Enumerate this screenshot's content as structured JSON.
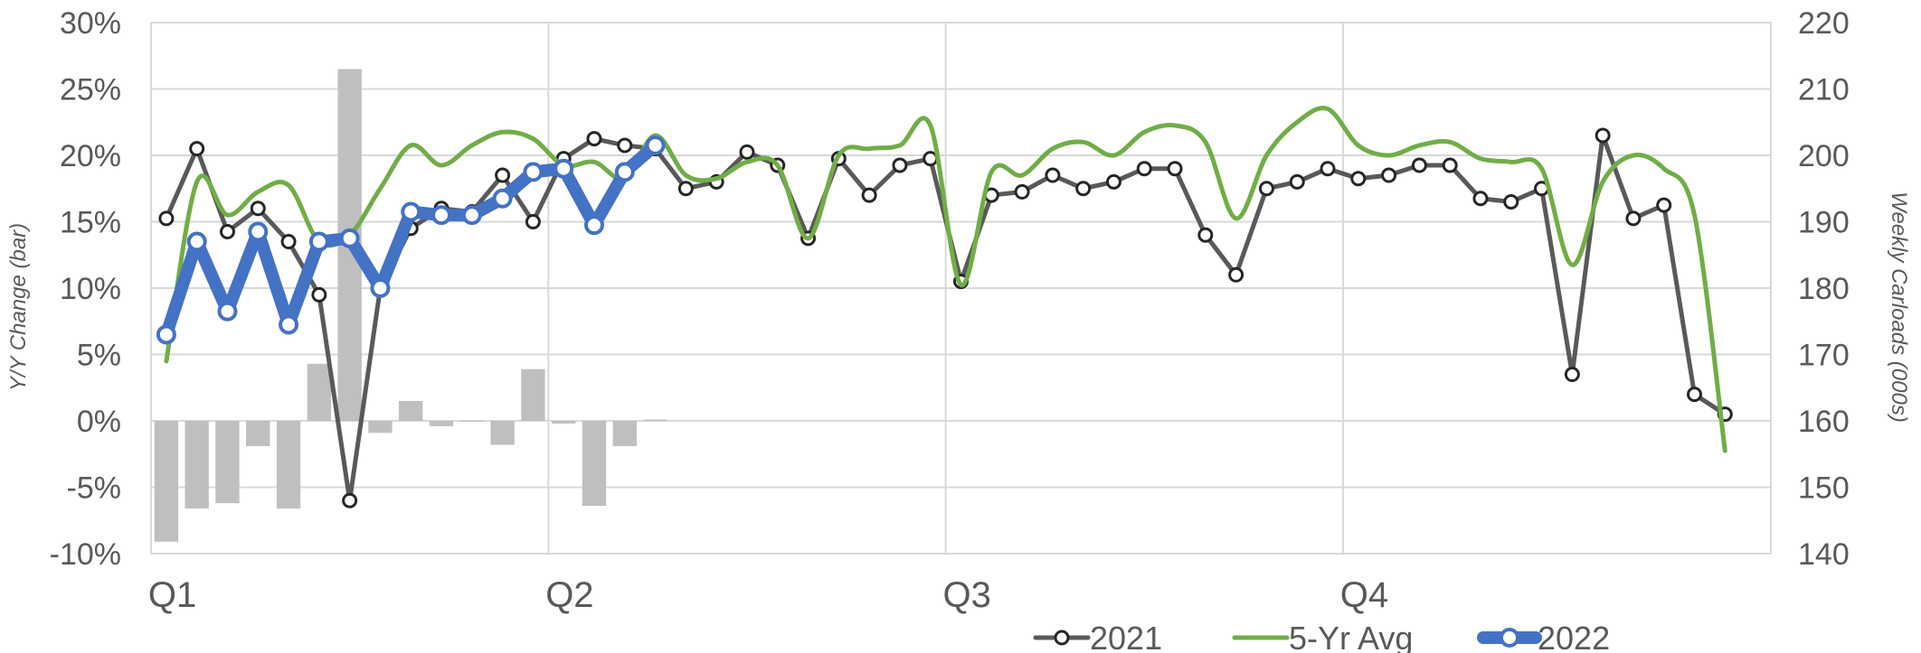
{
  "chart_data": {
    "type": "bar+line",
    "title": "",
    "left_axis": {
      "label": "Y/Y Change (bar)",
      "range": [
        -0.1,
        0.3
      ],
      "ticks": [
        {
          "value": 0.3,
          "label": "30%"
        },
        {
          "value": 0.25,
          "label": "25%"
        },
        {
          "value": 0.2,
          "label": "20%"
        },
        {
          "value": 0.15,
          "label": "15%"
        },
        {
          "value": 0.1,
          "label": "10%"
        },
        {
          "value": 0.05,
          "label": "5%"
        },
        {
          "value": 0.0,
          "label": "0%"
        },
        {
          "value": -0.05,
          "label": "-5%"
        },
        {
          "value": -0.1,
          "label": "-10%"
        }
      ]
    },
    "right_axis": {
      "label": "Weekly Carloads (000s)",
      "range": [
        140,
        220
      ],
      "ticks": [
        {
          "value": 220,
          "label": "220"
        },
        {
          "value": 210,
          "label": "210"
        },
        {
          "value": 200,
          "label": "200"
        },
        {
          "value": 190,
          "label": "190"
        },
        {
          "value": 180,
          "label": "180"
        },
        {
          "value": 170,
          "label": "170"
        },
        {
          "value": 160,
          "label": "160"
        },
        {
          "value": 150,
          "label": "150"
        },
        {
          "value": 140,
          "label": "140"
        }
      ]
    },
    "x_axis": {
      "weeks": 52,
      "categories": [
        {
          "week": 1,
          "label": "Q1"
        },
        {
          "week": 14,
          "label": "Q2"
        },
        {
          "week": 27,
          "label": "Q3"
        },
        {
          "week": 40,
          "label": "Q4"
        }
      ],
      "week_range": [
        0.5,
        53.5
      ]
    },
    "grid": true,
    "legend_position": "bottom-right",
    "bars": {
      "name": "Y/Y Change",
      "color": "#bfbfbf",
      "weeks": [
        1,
        2,
        3,
        4,
        5,
        6,
        7,
        8,
        9,
        10,
        11,
        12,
        13,
        14,
        15,
        16,
        17
      ],
      "values": [
        -0.091,
        -0.066,
        -0.062,
        -0.019,
        -0.066,
        0.043,
        0.265,
        -0.009,
        0.015,
        -0.004,
        0.0,
        -0.018,
        0.039,
        -0.002,
        -0.064,
        -0.019,
        0.001
      ]
    },
    "series": [
      {
        "name": "2021",
        "color": "#595959",
        "marker": "circle",
        "values": [
          190.5,
          201,
          188.5,
          192,
          187,
          179,
          148,
          180,
          189,
          192,
          191.5,
          197,
          190,
          199.5,
          202.5,
          201.5,
          201,
          195,
          196,
          200.5,
          198.5,
          187.5,
          199.5,
          194,
          198.5,
          199.5,
          181,
          194,
          194.5,
          197,
          195,
          196,
          198,
          198,
          188,
          182,
          195,
          196,
          198,
          196.5,
          197,
          198.5,
          198.5,
          193.5,
          193,
          195,
          167,
          203,
          190.5,
          192.5,
          164,
          161
        ]
      },
      {
        "name": "5-Yr Avg",
        "color": "#70ad47",
        "marker": "none",
        "values": [
          169,
          196,
          191,
          194.5,
          195.5,
          187,
          188,
          195,
          201.5,
          198.5,
          201.5,
          203.5,
          202.5,
          198.5,
          199,
          196.5,
          203,
          197,
          196.5,
          199,
          198.5,
          187.5,
          200,
          201,
          201.5,
          204.5,
          180.5,
          197.5,
          197,
          201,
          202,
          200,
          203.5,
          204.5,
          202,
          190.5,
          200,
          205,
          207,
          201.5,
          200,
          201.5,
          202,
          199.5,
          199,
          198,
          183.5,
          196,
          200,
          198,
          191,
          155.5
        ]
      },
      {
        "name": "2022",
        "color": "#4472c4",
        "marker": "circle",
        "weeks": [
          1,
          2,
          3,
          4,
          5,
          6,
          7,
          8,
          9,
          10,
          11,
          12,
          13,
          14,
          15,
          16,
          17
        ],
        "values": [
          173,
          187,
          176.5,
          188.5,
          174.5,
          187,
          187.5,
          180,
          191.5,
          191,
          191,
          193.5,
          197.5,
          198,
          189.5,
          197.5,
          201.5
        ]
      }
    ]
  },
  "legend": [
    {
      "label": "2021",
      "color": "#595959"
    },
    {
      "label": "5-Yr Avg",
      "color": "#70ad47"
    },
    {
      "label": "2022",
      "color": "#4472c4"
    }
  ]
}
